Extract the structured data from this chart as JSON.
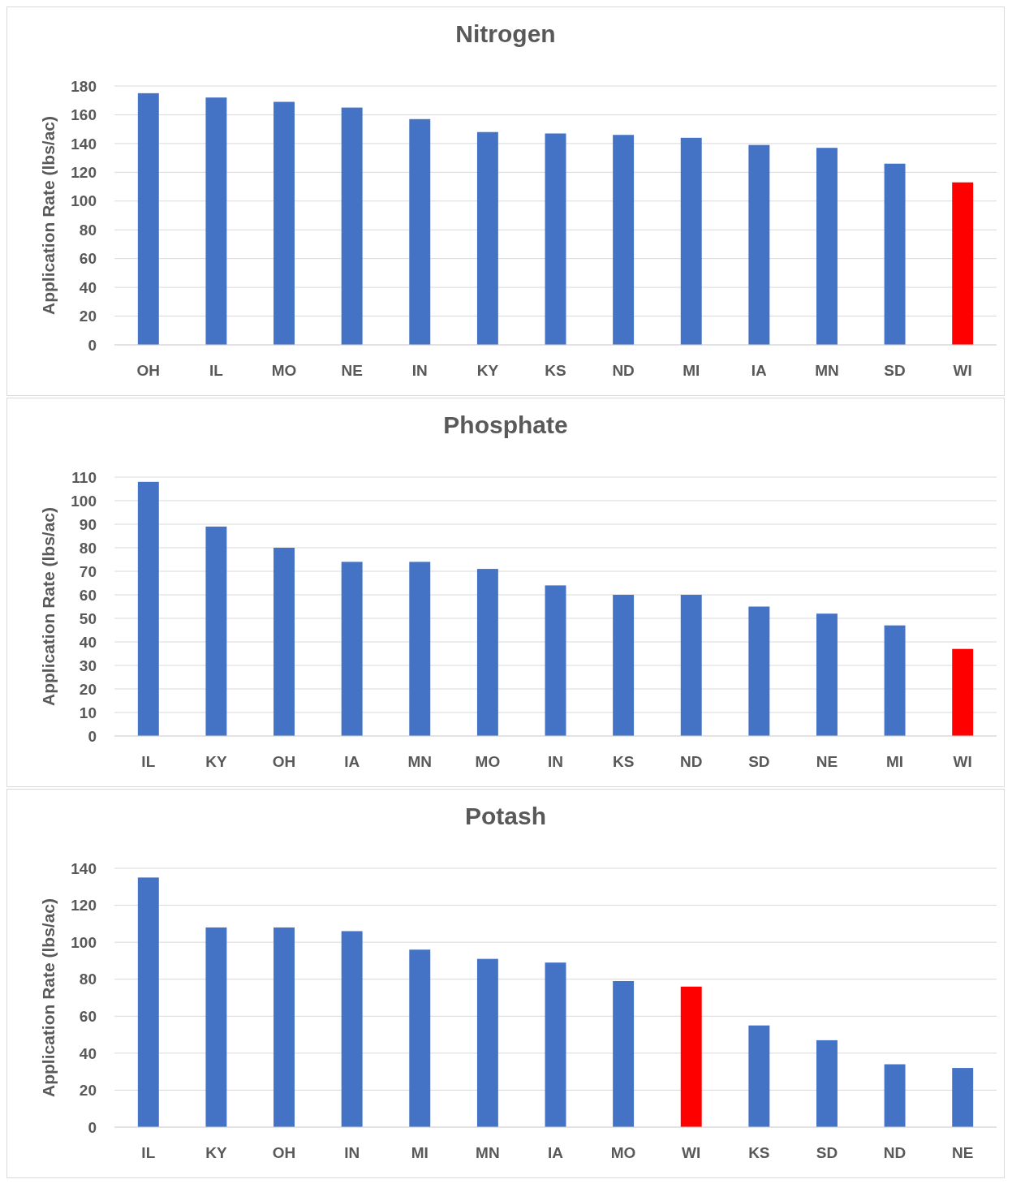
{
  "chart_data": [
    {
      "type": "bar",
      "title": "Nitrogen",
      "ylabel": "Application Rate (lbs/ac)",
      "categories": [
        "OH",
        "IL",
        "MO",
        "NE",
        "IN",
        "KY",
        "KS",
        "ND",
        "MI",
        "IA",
        "MN",
        "SD",
        "WI"
      ],
      "values": [
        175,
        172,
        169,
        165,
        157,
        148,
        147,
        146,
        144,
        139,
        137,
        126,
        113
      ],
      "colors": [
        "#4472c4",
        "#4472c4",
        "#4472c4",
        "#4472c4",
        "#4472c4",
        "#4472c4",
        "#4472c4",
        "#4472c4",
        "#4472c4",
        "#4472c4",
        "#4472c4",
        "#4472c4",
        "#ff0000"
      ],
      "ylim": [
        0,
        180
      ],
      "yticks": [
        0,
        20,
        40,
        60,
        80,
        100,
        120,
        140,
        160,
        180
      ],
      "grid": "y"
    },
    {
      "type": "bar",
      "title": "Phosphate",
      "ylabel": "Application Rate (lbs/ac)",
      "categories": [
        "IL",
        "KY",
        "OH",
        "IA",
        "MN",
        "MO",
        "IN",
        "KS",
        "ND",
        "SD",
        "NE",
        "MI",
        "WI"
      ],
      "values": [
        108,
        89,
        80,
        74,
        74,
        71,
        64,
        60,
        60,
        55,
        52,
        47,
        37
      ],
      "colors": [
        "#4472c4",
        "#4472c4",
        "#4472c4",
        "#4472c4",
        "#4472c4",
        "#4472c4",
        "#4472c4",
        "#4472c4",
        "#4472c4",
        "#4472c4",
        "#4472c4",
        "#4472c4",
        "#ff0000"
      ],
      "ylim": [
        0,
        110
      ],
      "yticks": [
        0,
        10,
        20,
        30,
        40,
        50,
        60,
        70,
        80,
        90,
        100,
        110
      ],
      "grid": "y"
    },
    {
      "type": "bar",
      "title": "Potash",
      "ylabel": "Application Rate (lbs/ac)",
      "categories": [
        "IL",
        "KY",
        "OH",
        "IN",
        "MI",
        "MN",
        "IA",
        "MO",
        "WI",
        "KS",
        "SD",
        "ND",
        "NE"
      ],
      "values": [
        135,
        108,
        108,
        106,
        96,
        91,
        89,
        79,
        76,
        55,
        47,
        34,
        32
      ],
      "colors": [
        "#4472c4",
        "#4472c4",
        "#4472c4",
        "#4472c4",
        "#4472c4",
        "#4472c4",
        "#4472c4",
        "#4472c4",
        "#ff0000",
        "#4472c4",
        "#4472c4",
        "#4472c4",
        "#4472c4"
      ],
      "ylim": [
        0,
        140
      ],
      "yticks": [
        0,
        20,
        40,
        60,
        80,
        100,
        120,
        140
      ],
      "grid": "y"
    }
  ]
}
